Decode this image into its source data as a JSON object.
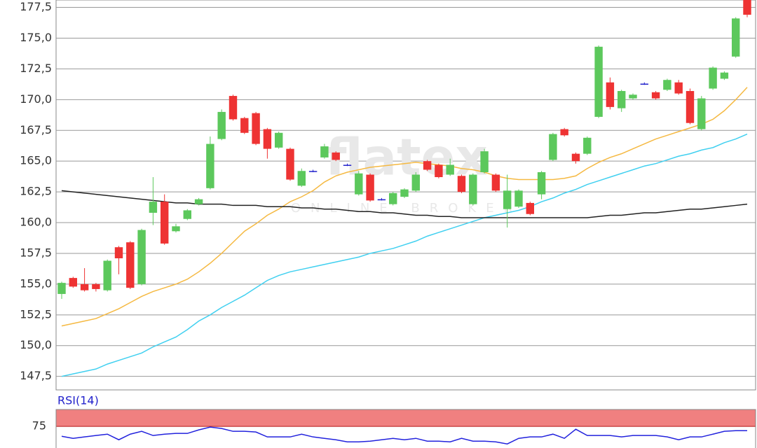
{
  "chart_data": {
    "type": "candlestick",
    "watermark": "flatex",
    "watermark_sub": "ONLINE BROKER",
    "ylim": [
      146.4,
      178.1
    ],
    "yticks": [
      {
        "value": 147.5,
        "label": "147,5"
      },
      {
        "value": 150,
        "label": "150,0"
      },
      {
        "value": 152.5,
        "label": "152,5"
      },
      {
        "value": 155,
        "label": "155,0"
      },
      {
        "value": 157.5,
        "label": "157,5"
      },
      {
        "value": 160,
        "label": "160,0"
      },
      {
        "value": 162.5,
        "label": "162,5"
      },
      {
        "value": 165,
        "label": "165,0"
      },
      {
        "value": 167.5,
        "label": "167,5"
      },
      {
        "value": 170,
        "label": "170,0"
      },
      {
        "value": 172.5,
        "label": "172,5"
      },
      {
        "value": 175,
        "label": "175,0"
      },
      {
        "value": 177.5,
        "label": "177,5"
      }
    ],
    "grid": true,
    "up_color": "#5cc85c",
    "down_color": "#ee3333",
    "flat_color": "#2222cc",
    "ohlc": {
      "open": [
        154.2,
        155.5,
        155.0,
        155.0,
        154.5,
        158.0,
        158.4,
        155.0,
        160.8,
        161.7,
        159.3,
        160.3,
        161.5,
        162.8,
        166.8,
        170.3,
        168.5,
        168.9,
        167.6,
        166.1,
        166.0,
        163.0,
        164.2,
        165.3,
        165.7,
        164.7,
        162.3,
        163.9,
        161.9,
        161.5,
        162.1,
        162.6,
        165.0,
        164.7,
        163.9,
        163.8,
        161.5,
        164.1,
        163.9,
        161.1,
        161.3,
        161.6,
        162.3,
        165.1,
        167.6,
        165.6,
        165.6,
        168.6,
        171.4,
        169.3,
        170.1,
        171.3,
        170.6,
        170.8,
        171.4,
        170.7,
        167.6,
        170.9,
        171.7,
        173.5,
        178.3
      ],
      "high": [
        155.2,
        155.6,
        156.3,
        155.1,
        157.0,
        158.1,
        158.5,
        159.5,
        163.7,
        162.3,
        159.9,
        161.1,
        162.0,
        167.0,
        169.2,
        170.4,
        168.6,
        169.0,
        167.7,
        167.4,
        166.1,
        164.4,
        164.3,
        166.4,
        165.8,
        164.8,
        164.2,
        164.0,
        162.0,
        162.5,
        162.8,
        164.1,
        165.1,
        164.8,
        165.2,
        163.9,
        164.0,
        166.0,
        164.0,
        163.9,
        162.7,
        161.7,
        164.2,
        167.3,
        167.7,
        165.7,
        167.0,
        174.4,
        171.8,
        170.8,
        170.5,
        171.4,
        170.7,
        171.7,
        171.6,
        170.9,
        170.3,
        172.7,
        172.3,
        176.7,
        179.0
      ],
      "low": [
        153.8,
        154.7,
        154.4,
        154.4,
        154.4,
        155.8,
        154.6,
        154.9,
        159.8,
        158.2,
        159.2,
        160.2,
        161.4,
        162.7,
        166.7,
        168.3,
        167.2,
        166.3,
        165.2,
        166.0,
        163.4,
        162.9,
        164.1,
        165.2,
        165.0,
        164.6,
        162.2,
        161.7,
        161.8,
        161.4,
        162.0,
        162.5,
        164.2,
        163.6,
        163.8,
        162.4,
        161.4,
        164.0,
        162.5,
        159.6,
        161.2,
        160.6,
        161.9,
        165.0,
        167.0,
        164.8,
        165.5,
        168.5,
        169.2,
        169.0,
        170.0,
        171.2,
        170.0,
        170.7,
        170.4,
        168.0,
        167.5,
        170.8,
        171.6,
        173.4,
        176.7
      ],
      "close": [
        155.1,
        154.8,
        154.5,
        154.6,
        156.9,
        157.1,
        154.7,
        159.4,
        161.7,
        158.3,
        159.7,
        161.0,
        161.9,
        166.4,
        169.0,
        168.4,
        167.3,
        166.4,
        166.0,
        167.3,
        163.5,
        164.2,
        164.2,
        166.2,
        165.1,
        164.7,
        164.0,
        161.8,
        161.9,
        162.4,
        162.7,
        163.9,
        164.3,
        163.7,
        164.7,
        162.5,
        163.9,
        165.8,
        162.6,
        162.6,
        162.6,
        160.7,
        164.1,
        167.2,
        167.1,
        165.0,
        166.9,
        174.3,
        169.4,
        170.7,
        170.4,
        171.3,
        170.1,
        171.6,
        170.5,
        168.1,
        170.1,
        172.6,
        172.2,
        176.6,
        176.9
      ]
    },
    "lines": [
      {
        "color": "#f5b942",
        "values": [
          151.6,
          151.8,
          152.0,
          152.2,
          152.6,
          153.0,
          153.5,
          154.0,
          154.4,
          154.7,
          155.0,
          155.4,
          156.0,
          156.7,
          157.5,
          158.4,
          159.3,
          159.9,
          160.6,
          161.1,
          161.7,
          162.1,
          162.6,
          163.3,
          163.8,
          164.1,
          164.3,
          164.5,
          164.6,
          164.7,
          164.8,
          164.9,
          164.8,
          164.7,
          164.6,
          164.4,
          164.3,
          164.1,
          163.8,
          163.6,
          163.5,
          163.5,
          163.5,
          163.5,
          163.6,
          163.8,
          164.4,
          164.9,
          165.3,
          165.6,
          166.0,
          166.4,
          166.8,
          167.1,
          167.4,
          167.7,
          168.0,
          168.4,
          169.1,
          170.0,
          171.0
        ]
      },
      {
        "color": "#40d0f0",
        "values": [
          147.5,
          147.7,
          147.9,
          148.1,
          148.5,
          148.8,
          149.1,
          149.4,
          149.9,
          150.3,
          150.7,
          151.3,
          152.0,
          152.5,
          153.1,
          153.6,
          154.1,
          154.7,
          155.3,
          155.7,
          156.0,
          156.2,
          156.4,
          156.6,
          156.8,
          157.0,
          157.2,
          157.5,
          157.7,
          157.9,
          158.2,
          158.5,
          158.9,
          159.2,
          159.5,
          159.8,
          160.1,
          160.4,
          160.6,
          160.8,
          161.0,
          161.3,
          161.7,
          162.0,
          162.4,
          162.7,
          163.1,
          163.4,
          163.7,
          164.0,
          164.3,
          164.6,
          164.8,
          165.1,
          165.4,
          165.6,
          165.9,
          166.1,
          166.5,
          166.8,
          167.2
        ]
      },
      {
        "color": "#222222",
        "values": [
          162.6,
          162.5,
          162.4,
          162.3,
          162.2,
          162.1,
          162.0,
          161.9,
          161.8,
          161.7,
          161.6,
          161.6,
          161.5,
          161.5,
          161.5,
          161.4,
          161.4,
          161.4,
          161.3,
          161.3,
          161.3,
          161.2,
          161.2,
          161.1,
          161.1,
          161.0,
          160.9,
          160.9,
          160.8,
          160.8,
          160.7,
          160.6,
          160.6,
          160.5,
          160.5,
          160.4,
          160.4,
          160.4,
          160.4,
          160.4,
          160.4,
          160.4,
          160.4,
          160.4,
          160.4,
          160.4,
          160.4,
          160.5,
          160.6,
          160.6,
          160.7,
          160.8,
          160.8,
          160.9,
          161.0,
          161.1,
          161.1,
          161.2,
          161.3,
          161.4,
          161.5
        ]
      }
    ],
    "rsi": {
      "label": "RSI(14)",
      "color": "#2222dd",
      "band": [
        75,
        100
      ],
      "band_color": "#f08080",
      "ylim": [
        43,
        100
      ],
      "yticks": [
        75
      ],
      "values": [
        60.4,
        57.3,
        59.4,
        61.5,
        63.5,
        55.2,
        63.5,
        67.7,
        61.5,
        63.5,
        64.6,
        64.6,
        69.8,
        74.0,
        71.9,
        67.7,
        67.7,
        66.7,
        59.4,
        59.4,
        59.4,
        63.5,
        59.4,
        57.3,
        55.2,
        52.1,
        52.1,
        53.1,
        55.2,
        57.3,
        55.2,
        57.3,
        53.1,
        53.1,
        52.1,
        57.3,
        53.1,
        53.1,
        52.1,
        49.0,
        57.3,
        59.4,
        59.4,
        63.5,
        57.3,
        70.8,
        61.5,
        61.5,
        61.5,
        59.4,
        61.5,
        61.5,
        61.5,
        59.4,
        55.2,
        59.4,
        59.4,
        63.5,
        67.7,
        68.7,
        68.7
      ]
    }
  }
}
